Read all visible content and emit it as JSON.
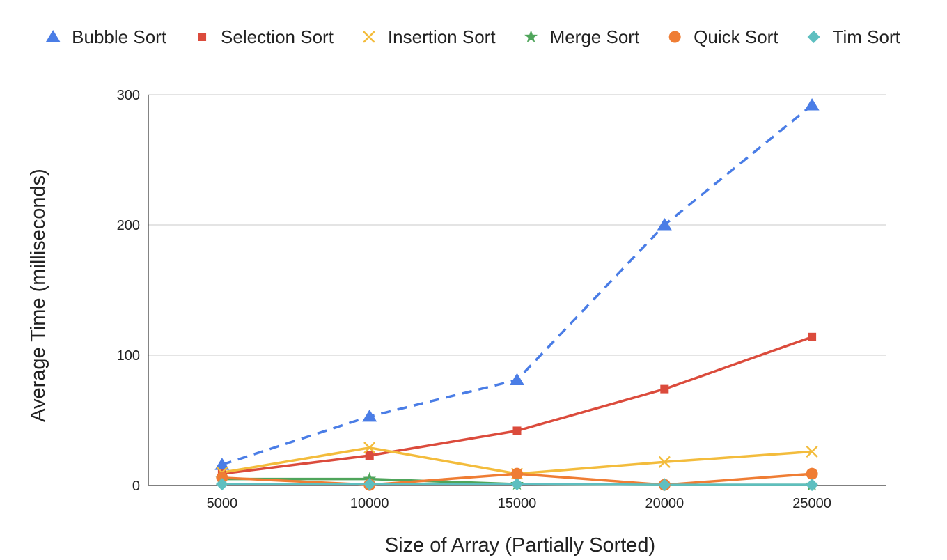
{
  "chart_data": {
    "type": "line",
    "title": "",
    "xlabel": "Size of Array (Partially Sorted)",
    "ylabel": "Average Time (milliseconds)",
    "x": [
      5000,
      10000,
      15000,
      20000,
      25000
    ],
    "x_tick_labels": [
      "5000",
      "10000",
      "15000",
      "20000",
      "25000"
    ],
    "xlim": [
      2500,
      27500
    ],
    "ylim": [
      0,
      300
    ],
    "y_ticks": [
      0,
      100,
      200,
      300
    ],
    "y_tick_labels": [
      "0",
      "100",
      "200",
      "300"
    ],
    "grid": true,
    "legend_position": "top",
    "series": [
      {
        "name": "Bubble Sort",
        "values": [
          16,
          53,
          81,
          200,
          292
        ],
        "color": "#4a7de6",
        "marker": "triangle",
        "dashed": true
      },
      {
        "name": "Selection Sort",
        "values": [
          9,
          23,
          42,
          74,
          114
        ],
        "color": "#db4b3c",
        "marker": "square",
        "dashed": false
      },
      {
        "name": "Insertion Sort",
        "values": [
          10,
          29,
          9,
          18,
          26
        ],
        "color": "#f3bc3c",
        "marker": "x",
        "dashed": false
      },
      {
        "name": "Merge Sort",
        "values": [
          5,
          5,
          1,
          0.5,
          0.5
        ],
        "color": "#4fa55b",
        "marker": "star",
        "dashed": false
      },
      {
        "name": "Quick Sort",
        "values": [
          6,
          0.5,
          9,
          0.5,
          9
        ],
        "color": "#ef7d34",
        "marker": "circle",
        "dashed": false
      },
      {
        "name": "Tim Sort",
        "values": [
          1,
          1,
          1,
          0.5,
          0.5
        ],
        "color": "#5ebfc0",
        "marker": "diamond",
        "dashed": false
      }
    ]
  }
}
